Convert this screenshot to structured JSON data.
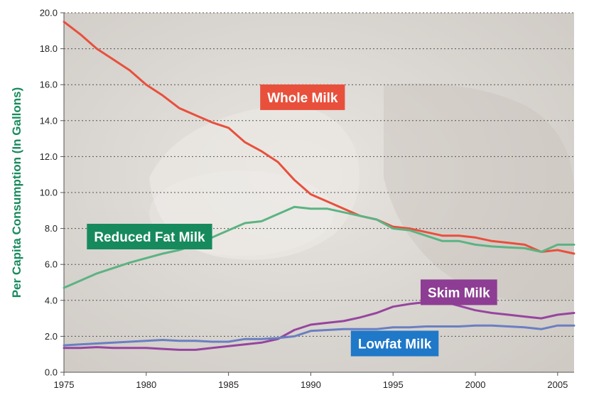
{
  "chart_data": {
    "type": "line",
    "title": "",
    "xlabel": "",
    "ylabel": "Per Capita Consumption (In Gallons)",
    "xlim": [
      1975,
      2006
    ],
    "ylim": [
      0,
      20
    ],
    "x_ticks": [
      1975,
      1980,
      1985,
      1990,
      1995,
      2000,
      2005
    ],
    "y_ticks": [
      "0.0",
      "2.0",
      "4.0",
      "6.0",
      "8.0",
      "10.0",
      "12.0",
      "14.0",
      "16.0",
      "18.0",
      "20.0"
    ],
    "grid": "horizontal dotted",
    "legend": "labels placed directly on the plot",
    "x": [
      1975,
      1976,
      1977,
      1978,
      1979,
      1980,
      1981,
      1982,
      1983,
      1984,
      1985,
      1986,
      1987,
      1988,
      1989,
      1990,
      1991,
      1992,
      1993,
      1994,
      1995,
      1996,
      1997,
      1998,
      1999,
      2000,
      2001,
      2002,
      2003,
      2004,
      2005,
      2006
    ],
    "series": [
      {
        "name": "Whole Milk",
        "color": "#e8503c",
        "label_color": "#e8503c",
        "values": [
          19.5,
          18.8,
          18.0,
          17.4,
          16.8,
          16.0,
          15.4,
          14.7,
          14.3,
          13.9,
          13.6,
          12.8,
          12.3,
          11.7,
          10.7,
          9.9,
          9.5,
          9.1,
          8.7,
          8.5,
          8.1,
          8.0,
          7.8,
          7.6,
          7.6,
          7.5,
          7.3,
          7.2,
          7.1,
          6.7,
          6.8,
          6.6
        ]
      },
      {
        "name": "Reduced Fat Milk",
        "color": "#5cb383",
        "label_color": "#178a5d",
        "values": [
          4.7,
          5.1,
          5.5,
          5.8,
          6.1,
          6.35,
          6.6,
          6.8,
          7.1,
          7.5,
          7.9,
          8.3,
          8.4,
          8.8,
          9.2,
          9.1,
          9.1,
          8.9,
          8.7,
          8.5,
          8.0,
          7.9,
          7.6,
          7.3,
          7.3,
          7.1,
          7.0,
          6.95,
          6.9,
          6.7,
          7.1,
          7.1
        ]
      },
      {
        "name": "Skim Milk",
        "color": "#96459f",
        "label_color": "#8d3d93",
        "values": [
          1.35,
          1.35,
          1.4,
          1.35,
          1.35,
          1.35,
          1.3,
          1.25,
          1.25,
          1.35,
          1.45,
          1.55,
          1.65,
          1.85,
          2.35,
          2.65,
          2.75,
          2.85,
          3.05,
          3.3,
          3.65,
          3.8,
          3.9,
          3.95,
          3.7,
          3.45,
          3.3,
          3.2,
          3.1,
          3.0,
          3.2,
          3.3
        ]
      },
      {
        "name": "Lowfat Milk",
        "color": "#6a7fc2",
        "label_color": "#1f78c8",
        "values": [
          1.5,
          1.55,
          1.6,
          1.65,
          1.7,
          1.75,
          1.8,
          1.75,
          1.75,
          1.7,
          1.7,
          1.85,
          1.85,
          1.9,
          2.0,
          2.3,
          2.35,
          2.4,
          2.4,
          2.4,
          2.5,
          2.5,
          2.55,
          2.55,
          2.55,
          2.6,
          2.6,
          2.55,
          2.5,
          2.4,
          2.6,
          2.6
        ]
      }
    ],
    "colors": {
      "plot_background": "#dedad5",
      "page_background": "#ffffff",
      "ylabel": "#178a5d",
      "grid": "#555555"
    }
  }
}
